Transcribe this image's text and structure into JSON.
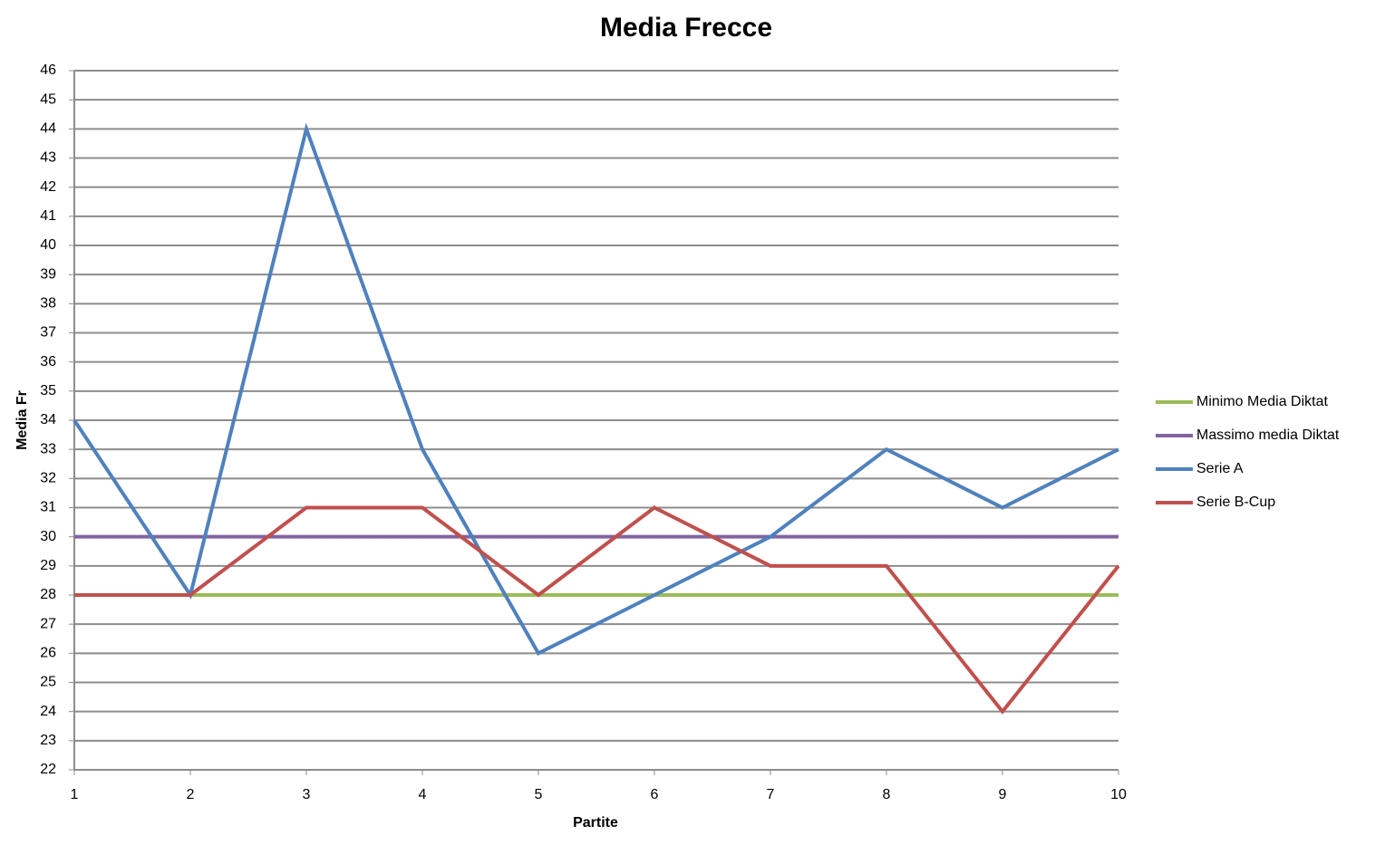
{
  "chart_data": {
    "type": "line",
    "title": "Media Frecce",
    "x_label": "Partite",
    "y_label": "Media Fr",
    "x": [
      1,
      2,
      3,
      4,
      5,
      6,
      7,
      8,
      9,
      10
    ],
    "xlim": [
      1,
      10
    ],
    "xticks": [
      1,
      2,
      3,
      4,
      5,
      6,
      7,
      8,
      9,
      10
    ],
    "ylim": [
      22,
      46
    ],
    "yticks": [
      22,
      23,
      24,
      25,
      26,
      27,
      28,
      29,
      30,
      31,
      32,
      33,
      34,
      35,
      36,
      37,
      38,
      39,
      40,
      41,
      42,
      43,
      44,
      45,
      46
    ],
    "grid": true,
    "legend": "right",
    "series": [
      {
        "name": "Minimo Media Diktat",
        "color": "#9bbb59",
        "values": [
          28,
          28,
          28,
          28,
          28,
          28,
          28,
          28,
          28,
          28
        ]
      },
      {
        "name": "Massimo media Diktat",
        "color": "#8064a2",
        "values": [
          30,
          30,
          30,
          30,
          30,
          30,
          30,
          30,
          30,
          30
        ]
      },
      {
        "name": "Serie A",
        "color": "#4f81bd",
        "values": [
          34,
          28,
          44,
          33,
          26,
          28,
          30,
          33,
          31,
          33
        ]
      },
      {
        "name": "Serie B-Cup",
        "color": "#c0504d",
        "values": [
          28,
          28,
          31,
          31,
          28,
          31,
          29,
          29,
          24,
          29
        ]
      }
    ]
  }
}
